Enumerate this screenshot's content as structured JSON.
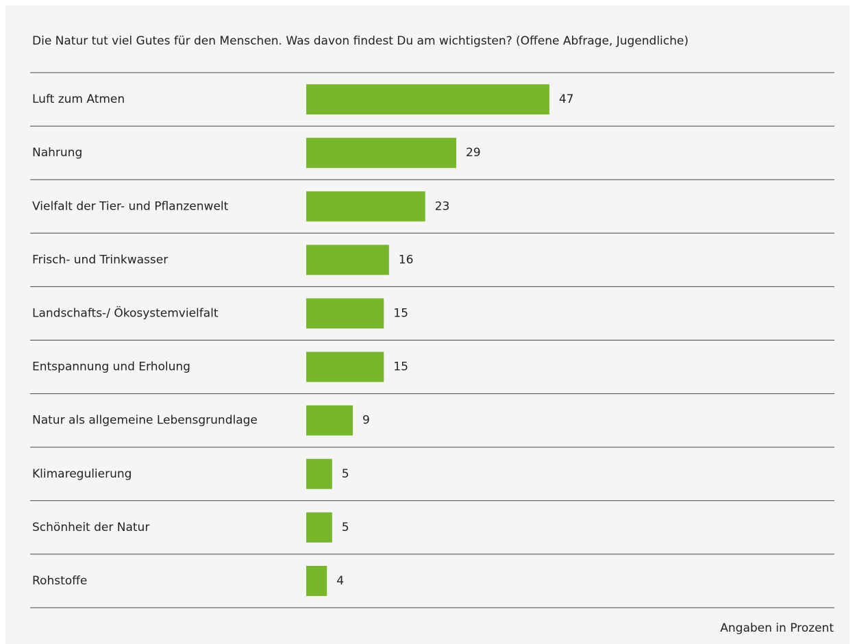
{
  "chart_data": {
    "type": "bar",
    "orientation": "horizontal",
    "title": "Die Natur tut viel Gutes für den Menschen. Was davon findest Du am wichtigsten? (Offene Abfrage, Jugendliche)",
    "categories": [
      "Luft zum Atmen",
      "Nahrung",
      "Vielfalt der Tier- und Pflanzenwelt",
      "Frisch- und Trinkwasser",
      "Landschafts-/ Ökosystemvielfalt",
      "Entspannung und Erholung",
      "Natur als allgemeine Lebensgrundlage",
      "Klimaregulierung",
      "Schönheit der Natur",
      "Rohstoffe"
    ],
    "values": [
      47,
      29,
      23,
      16,
      15,
      15,
      9,
      5,
      5,
      4
    ],
    "color": "#76b82a",
    "note": "Angaben in Prozent"
  }
}
